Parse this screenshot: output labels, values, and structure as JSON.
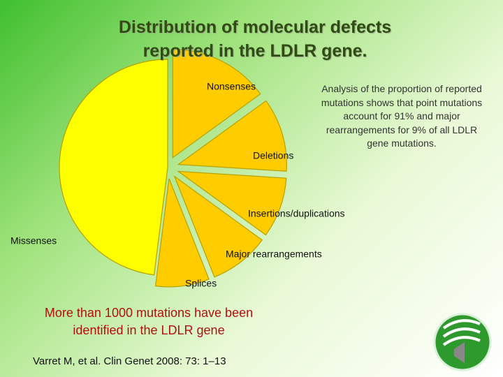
{
  "chart_data": {
    "type": "pie",
    "title": "Distribution of molecular defects reported in the LDLR gene.",
    "categories": [
      "Nonsenses",
      "Deletions",
      "Insertions/duplications",
      "Major rearrangements",
      "Splices",
      "Missenses"
    ],
    "values": [
      15,
      11,
      9,
      9,
      8,
      48
    ],
    "colors": [
      "#ffcc00",
      "#ffcc00",
      "#ffcc00",
      "#ffcc00",
      "#ffcc00",
      "#ffff00"
    ],
    "annotations": [
      "Analysis of the proportion of reported mutations shows that point mutations account for 91% and major rearrangements for 9% of all LDLR gene mutations.",
      "More than 1000 mutations have been identified in the LDLR gene",
      "Varret M, et al. Clin Genet 2008: 73: 1–13"
    ]
  }
}
